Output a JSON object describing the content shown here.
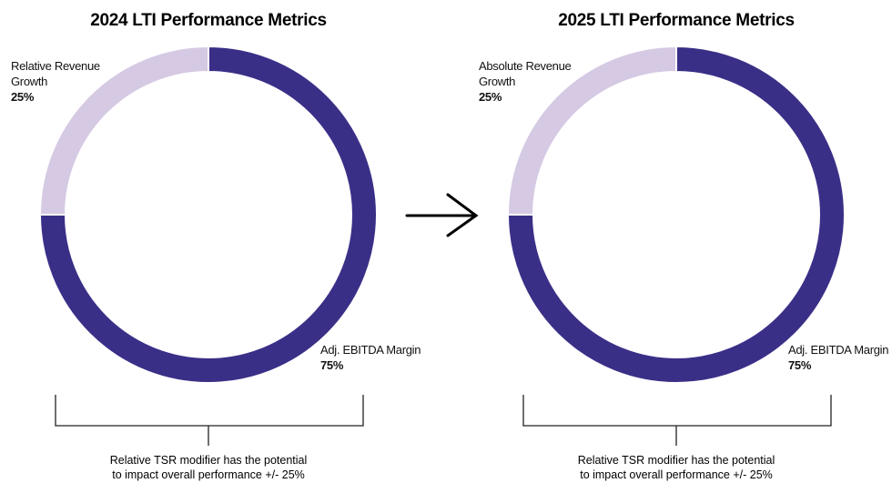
{
  "chart_data": [
    {
      "type": "pie",
      "title": "2024 LTI Performance Metrics",
      "categories": [
        "Adj. EBITDA Margin",
        "Relative Revenue Growth"
      ],
      "values": [
        75,
        25
      ],
      "value_labels": [
        "75%",
        "25%"
      ],
      "colors": [
        "#3a2f87",
        "#d5c9e3"
      ],
      "note": [
        "Relative TSR modifier has the potential",
        "to impact overall performance +/- 25%"
      ]
    },
    {
      "type": "pie",
      "title": "2025 LTI Performance Metrics",
      "categories": [
        "Adj. EBITDA Margin",
        "Absolute Revenue Growth"
      ],
      "values": [
        75,
        25
      ],
      "value_labels": [
        "75%",
        "25%"
      ],
      "colors": [
        "#3a2f87",
        "#d5c9e3"
      ],
      "note": [
        "Relative TSR modifier has the potential",
        "to impact overall performance +/- 25%"
      ]
    }
  ]
}
